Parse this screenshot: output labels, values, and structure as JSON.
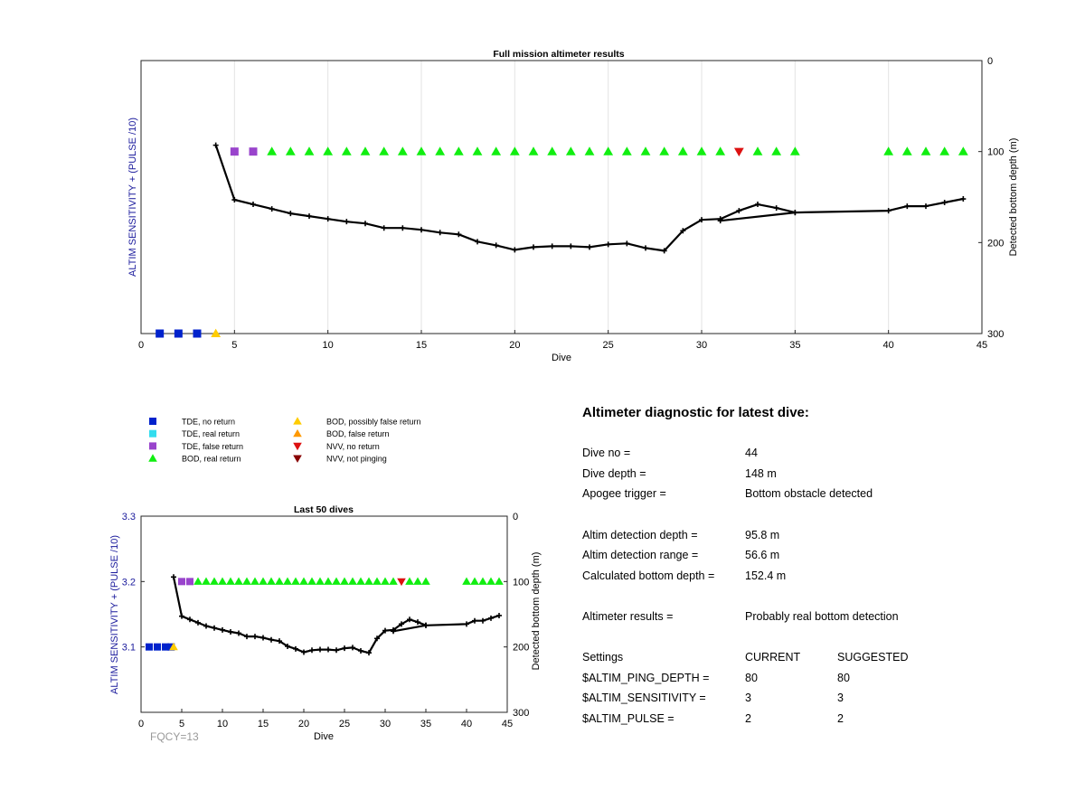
{
  "colors": {
    "tde_no_return": "#0022cc",
    "tde_real_return": "#33ddee",
    "tde_false_return": "#9944cc",
    "bod_real_return": "#11ee11",
    "bod_possibly_false": "#ffcc00",
    "bod_false_return": "#ff9900",
    "nvv_no_return": "#dd1111",
    "nvv_not_pinging": "#880000",
    "axis_left_label": "#1a1a9c",
    "fqcy": "#999999"
  },
  "legend": [
    {
      "label": "TDE, no return",
      "marker": "square",
      "color_key": "tde_no_return"
    },
    {
      "label": "TDE, real return",
      "marker": "square",
      "color_key": "tde_real_return"
    },
    {
      "label": "TDE, false return",
      "marker": "square",
      "color_key": "tde_false_return"
    },
    {
      "label": "BOD, real return",
      "marker": "triangle-up",
      "color_key": "bod_real_return"
    },
    {
      "label": "BOD, possibly false return",
      "marker": "triangle-up",
      "color_key": "bod_possibly_false"
    },
    {
      "label": "BOD, false return",
      "marker": "triangle-up",
      "color_key": "bod_false_return"
    },
    {
      "label": "NVV, no return",
      "marker": "triangle-down",
      "color_key": "nvv_no_return"
    },
    {
      "label": "NVV, not pinging",
      "marker": "triangle-down",
      "color_key": "nvv_not_pinging"
    }
  ],
  "chart_data": [
    {
      "type": "scatter",
      "id": "full",
      "title": "Full mission altimeter results",
      "xlabel": "Dive",
      "ylabel_left": "ALTIM SENSITIVITY + (PULSE /10)",
      "ylabel_right": "Detected bottom depth (m)",
      "xlim": [
        0,
        45
      ],
      "xticks": [
        0,
        5,
        10,
        15,
        20,
        25,
        30,
        35,
        40,
        45
      ],
      "ylim_right": [
        0,
        300
      ],
      "yticks_right": [
        0,
        100,
        200,
        300
      ],
      "right_axis_reversed": true,
      "grid_x": true,
      "bottom_depth_line": {
        "x": [
          4,
          5,
          6,
          7,
          8,
          9,
          10,
          11,
          12,
          13,
          14,
          15,
          16,
          17,
          18,
          19,
          20,
          21,
          22,
          23,
          24,
          25,
          26,
          27,
          28,
          29,
          30,
          31,
          32,
          33,
          34,
          35,
          31,
          35,
          40,
          41,
          42,
          43,
          44
        ],
        "y": [
          93,
          153,
          158,
          163,
          168,
          171,
          174,
          177,
          179,
          184,
          184,
          186,
          189,
          191,
          199,
          203,
          208,
          205,
          204,
          204,
          205,
          202,
          201,
          206,
          209,
          187,
          175,
          174,
          165,
          158,
          162,
          167,
          176,
          167,
          165,
          160,
          160,
          156,
          152
        ]
      },
      "markers": [
        {
          "category": "TDE, no return",
          "x": [
            1,
            2,
            3
          ],
          "depth": [
            300,
            300,
            300
          ]
        },
        {
          "category": "BOD, possibly false return",
          "x": [
            4
          ],
          "depth": [
            300
          ]
        },
        {
          "category": "TDE, false return",
          "x": [
            5,
            6
          ],
          "depth": [
            100,
            100
          ]
        },
        {
          "category": "BOD, real return",
          "x": [
            7,
            8,
            9,
            10,
            11,
            12,
            13,
            14,
            15,
            16,
            17,
            18,
            19,
            20,
            21,
            22,
            23,
            24,
            25,
            26,
            27,
            28,
            29,
            30,
            31,
            33,
            34,
            35,
            40,
            41,
            42,
            43,
            44
          ],
          "depth": [
            100,
            100,
            100,
            100,
            100,
            100,
            100,
            100,
            100,
            100,
            100,
            100,
            100,
            100,
            100,
            100,
            100,
            100,
            100,
            100,
            100,
            100,
            100,
            100,
            100,
            100,
            100,
            100,
            100,
            100,
            100,
            100,
            100
          ]
        },
        {
          "category": "NVV, no return",
          "x": [
            32
          ],
          "depth": [
            100
          ]
        }
      ]
    },
    {
      "type": "scatter",
      "id": "last50",
      "title": "Last 50 dives",
      "xlabel": "Dive",
      "ylabel_left": "ALTIM SENSITIVITY + (PULSE /10)",
      "ylabel_right": "Detected bottom depth (m)",
      "xlim": [
        0,
        45
      ],
      "xticks": [
        0,
        5,
        10,
        15,
        20,
        25,
        30,
        35,
        40,
        45
      ],
      "ylim_left": [
        3.0,
        3.3
      ],
      "yticks_left": [
        3.1,
        3.2,
        3.3
      ],
      "ylim_right": [
        0,
        300
      ],
      "yticks_right": [
        0,
        100,
        200,
        300
      ],
      "right_axis_reversed": true,
      "grid_x": false,
      "annotation": "FQCY=13",
      "bottom_depth_line": {
        "x": [
          4,
          5,
          6,
          7,
          8,
          9,
          10,
          11,
          12,
          13,
          14,
          15,
          16,
          17,
          18,
          19,
          20,
          21,
          22,
          23,
          24,
          25,
          26,
          27,
          28,
          29,
          30,
          31,
          32,
          33,
          34,
          35,
          31,
          35,
          40,
          41,
          42,
          43,
          44
        ],
        "y": [
          93,
          153,
          158,
          163,
          168,
          171,
          174,
          177,
          179,
          184,
          184,
          186,
          189,
          191,
          199,
          203,
          208,
          205,
          204,
          204,
          205,
          202,
          201,
          206,
          209,
          187,
          175,
          174,
          165,
          158,
          162,
          167,
          176,
          167,
          165,
          160,
          160,
          156,
          152
        ]
      },
      "markers": [
        {
          "category": "TDE, no return",
          "x": [
            1,
            2,
            3,
            3.7
          ],
          "value": [
            3.1,
            3.1,
            3.1,
            3.1
          ]
        },
        {
          "category": "BOD, possibly false return",
          "x": [
            4
          ],
          "value": [
            3.1
          ]
        },
        {
          "category": "TDE, false return",
          "x": [
            5,
            6
          ],
          "value": [
            3.2,
            3.2
          ]
        },
        {
          "category": "BOD, real return",
          "x": [
            7,
            8,
            9,
            10,
            11,
            12,
            13,
            14,
            15,
            16,
            17,
            18,
            19,
            20,
            21,
            22,
            23,
            24,
            25,
            26,
            27,
            28,
            29,
            30,
            31,
            33,
            34,
            35,
            40,
            41,
            42,
            43,
            44
          ],
          "value": [
            3.2,
            3.2,
            3.2,
            3.2,
            3.2,
            3.2,
            3.2,
            3.2,
            3.2,
            3.2,
            3.2,
            3.2,
            3.2,
            3.2,
            3.2,
            3.2,
            3.2,
            3.2,
            3.2,
            3.2,
            3.2,
            3.2,
            3.2,
            3.2,
            3.2,
            3.2,
            3.2,
            3.2,
            3.2,
            3.2,
            3.2,
            3.2,
            3.2
          ]
        },
        {
          "category": "NVV, no return",
          "x": [
            32
          ],
          "value": [
            3.2
          ]
        }
      ]
    }
  ],
  "diagnostic": {
    "title": "Altimeter diagnostic for latest dive:",
    "dive_no": {
      "label": "Dive no =",
      "value": "44"
    },
    "dive_depth": {
      "label": "Dive depth =",
      "value": "148 m"
    },
    "apogee": {
      "label": "Apogee trigger =",
      "value": "Bottom obstacle detected"
    },
    "altim_detect_depth": {
      "label": "Altim detection depth =",
      "value": "95.8 m"
    },
    "altim_detect_range": {
      "label": "Altim detection range =",
      "value": "56.6 m"
    },
    "calc_bottom": {
      "label": "Calculated bottom depth =",
      "value": "152.4 m"
    },
    "results": {
      "label": "Altimeter results =",
      "value": "Probably real bottom detection"
    },
    "settings_header": {
      "label": "Settings",
      "current": "CURRENT",
      "suggested": "SUGGESTED"
    },
    "settings": [
      {
        "label": "$ALTIM_PING_DEPTH =",
        "current": "80",
        "suggested": "80"
      },
      {
        "label": "$ALTIM_SENSITIVITY =",
        "current": "3",
        "suggested": "3"
      },
      {
        "label": "$ALTIM_PULSE =",
        "current": "2",
        "suggested": "2"
      }
    ]
  }
}
